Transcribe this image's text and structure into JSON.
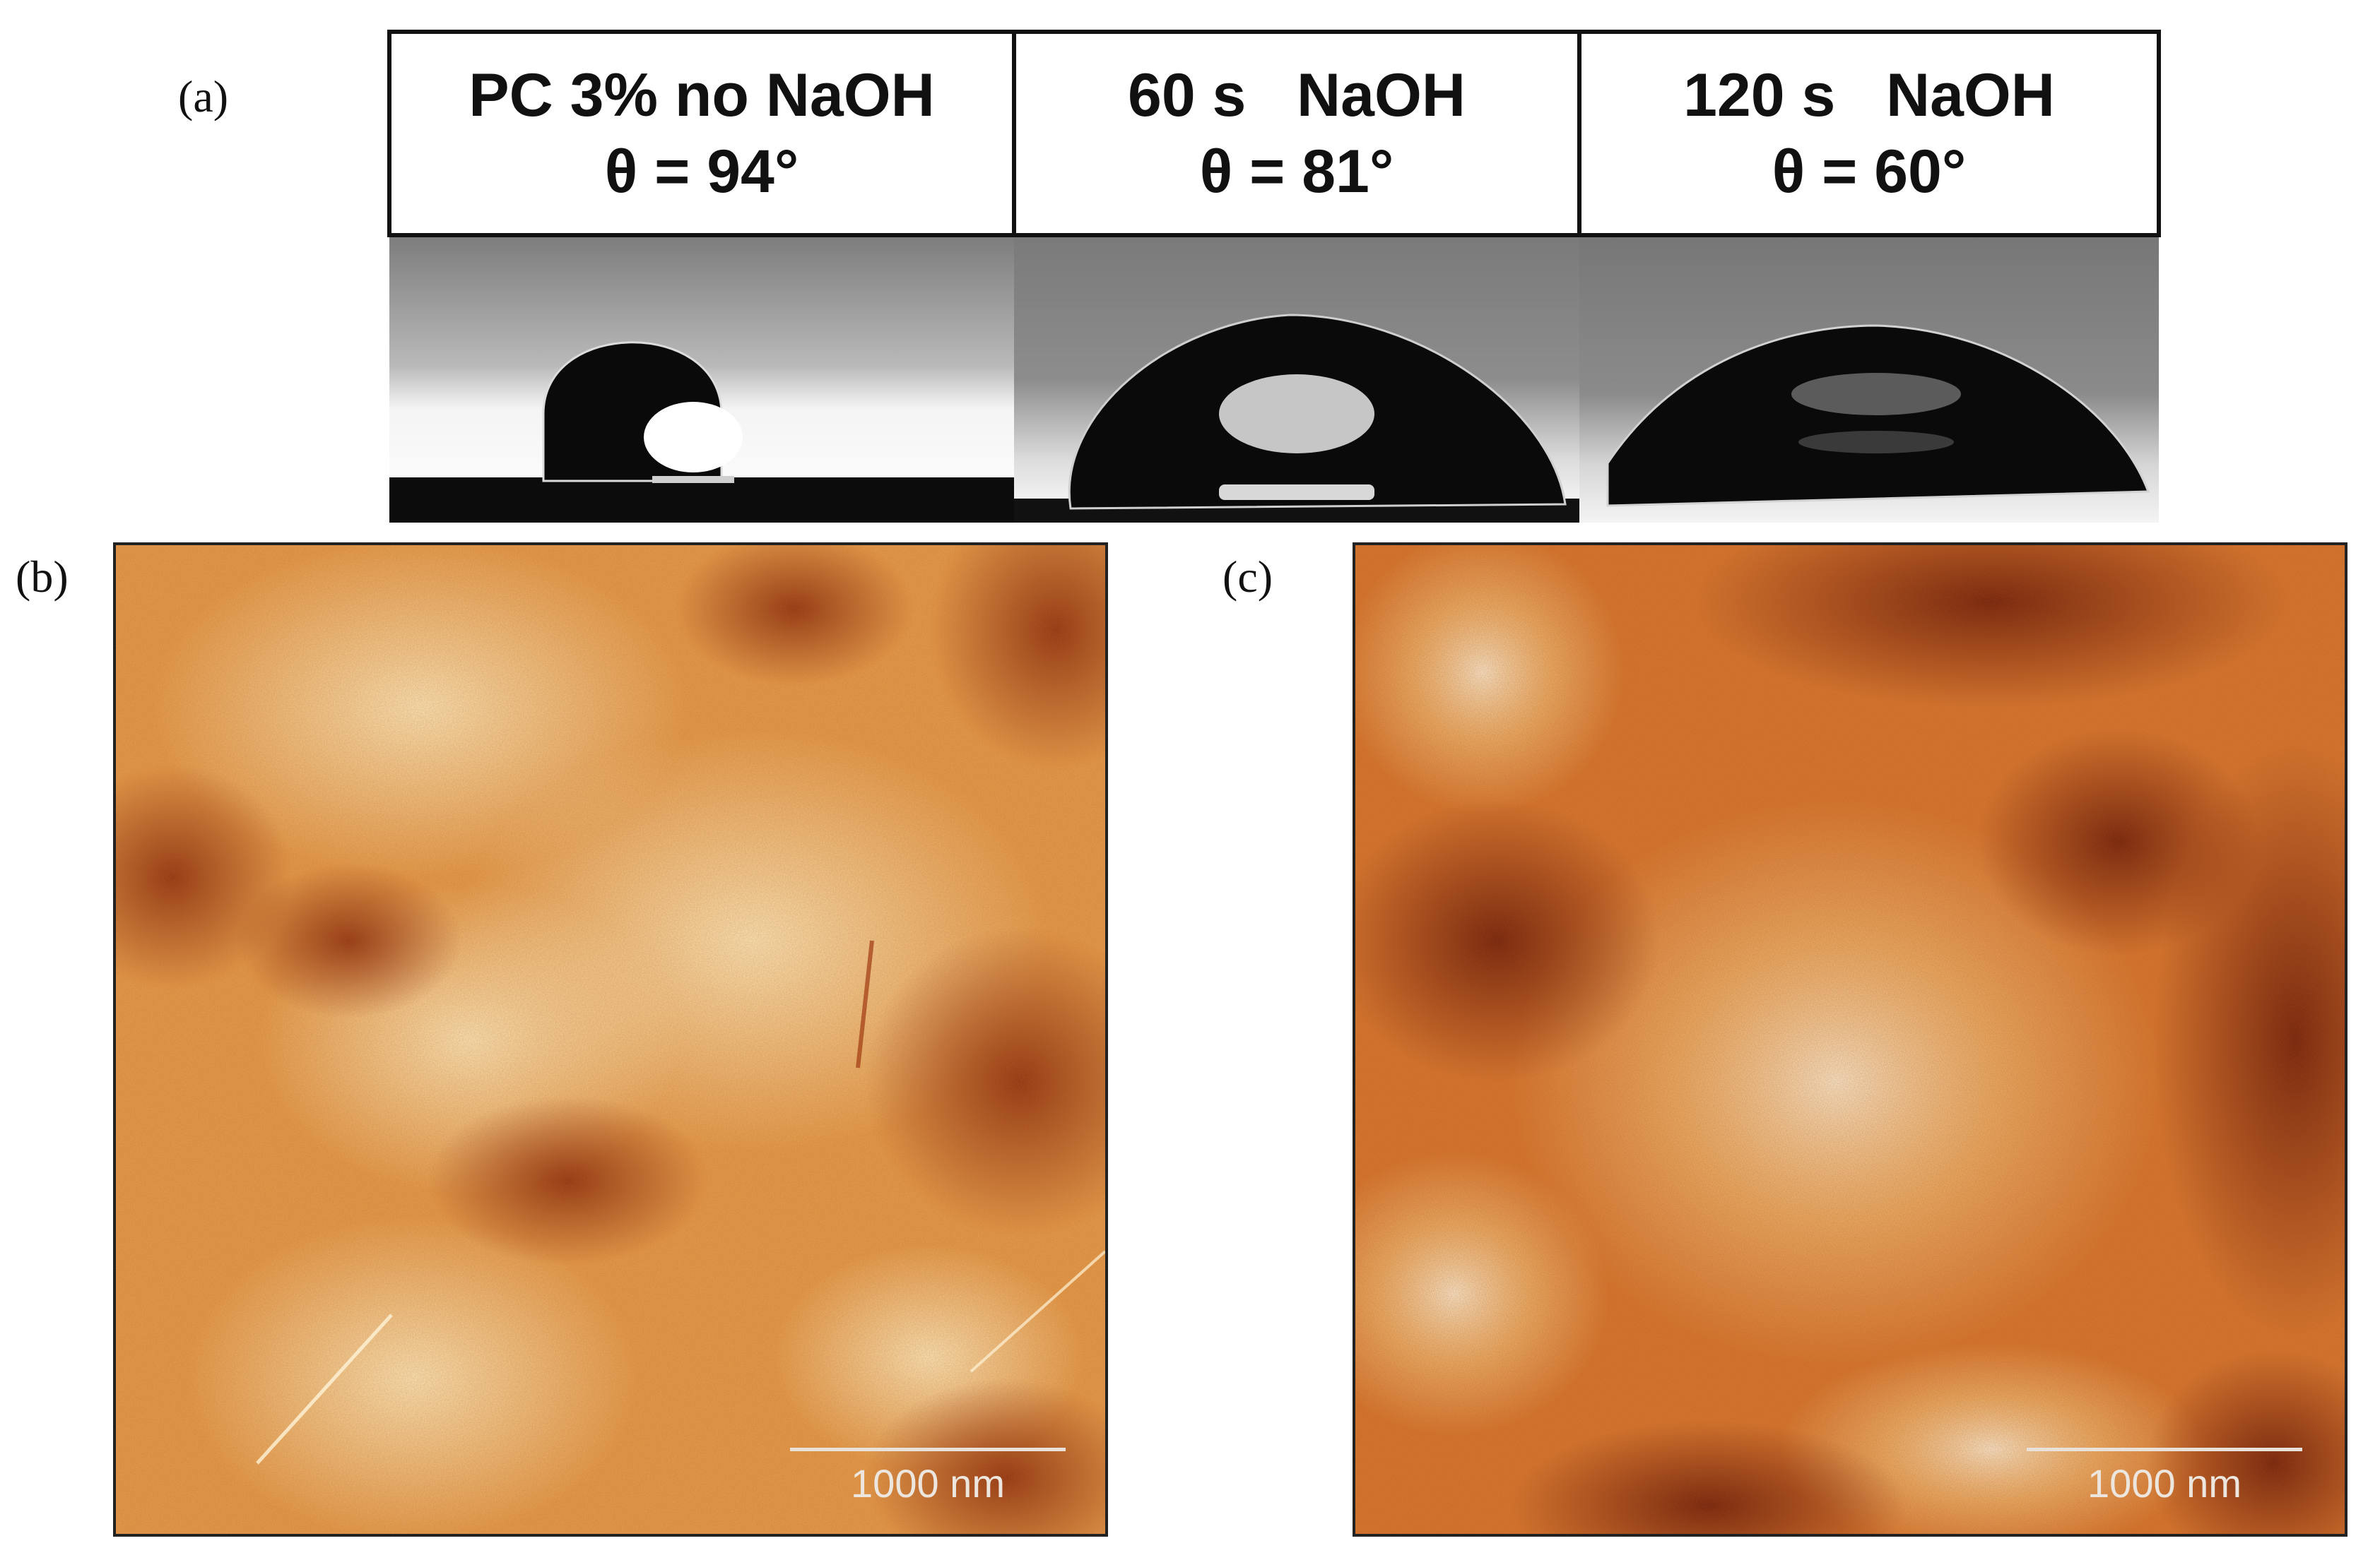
{
  "figure": {
    "panel_a": {
      "letter": "(a)",
      "columns": [
        {
          "line1": "PC 3% no NaOH",
          "line2": "θ = 94°",
          "contact_angle_deg": 94
        },
        {
          "line1": "60 s   NaOH",
          "line2": "θ = 81°",
          "contact_angle_deg": 81
        },
        {
          "line1": "120 s   NaOH",
          "line2": "θ = 60°",
          "contact_angle_deg": 60
        }
      ]
    },
    "panel_b": {
      "letter": "(b)",
      "scale_label": "1000 nm"
    },
    "panel_c": {
      "letter": "(c)",
      "scale_label": "1000 nm"
    }
  },
  "colors": {
    "afm_light": "#fbe7b6",
    "afm_mid": "#e39542",
    "afm_dark": "#6a1a08",
    "droplet": "#0a0a0a",
    "background_grey": "#8a8a8a"
  }
}
